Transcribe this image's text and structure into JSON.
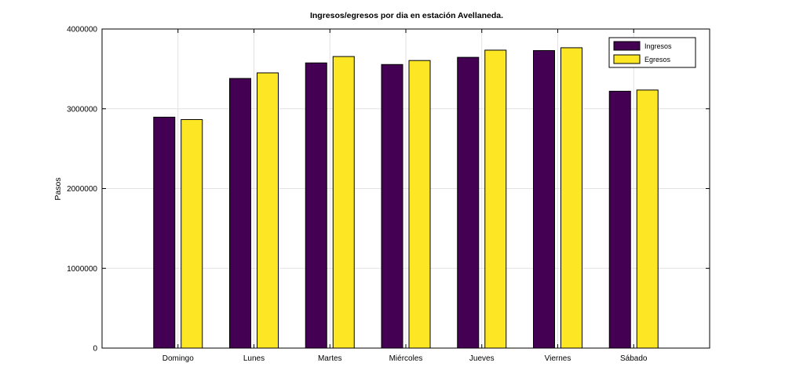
{
  "chart_data": {
    "type": "bar",
    "title": "Ingresos/egresos por dia en estación Avellaneda.",
    "xlabel": "",
    "ylabel": "Pasos",
    "categories": [
      "Domingo",
      "Lunes",
      "Martes",
      "Miércoles",
      "Jueves",
      "Viernes",
      "Sábado"
    ],
    "series": [
      {
        "name": "Ingresos",
        "color": "#440154",
        "values": [
          2895000,
          3380000,
          3575000,
          3555000,
          3645000,
          3730000,
          3220000
        ]
      },
      {
        "name": "Egresos",
        "color": "#fde725",
        "values": [
          2865000,
          3450000,
          3655000,
          3605000,
          3735000,
          3765000,
          3235000
        ]
      }
    ],
    "ylim": [
      0,
      4000000
    ],
    "yticks": [
      "0",
      "1000000",
      "2000000",
      "3000000",
      "4000000"
    ],
    "grid": true,
    "legend_position": "top-right"
  }
}
